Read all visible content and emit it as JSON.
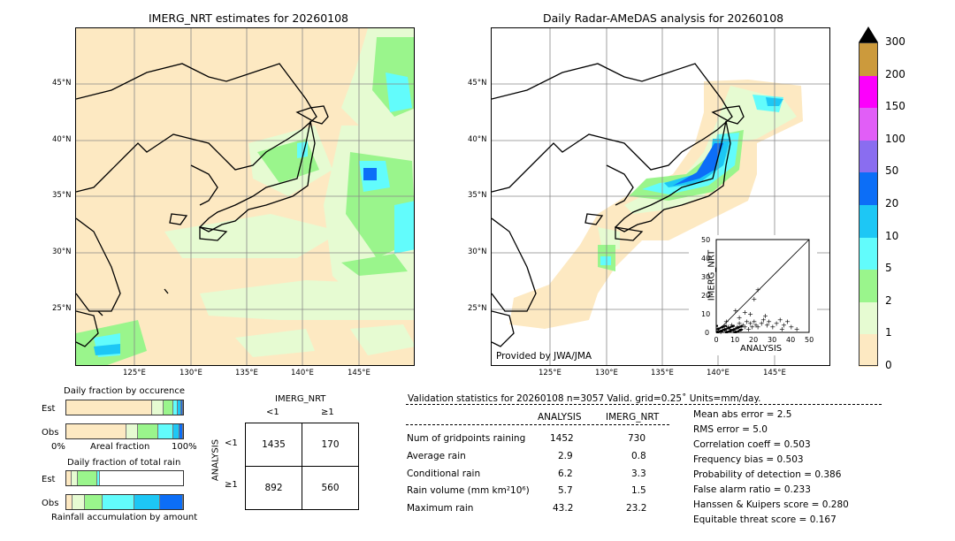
{
  "left_map": {
    "title": "IMERG_NRT estimates for 20260108",
    "lat_ticks": [
      "45°N",
      "40°N",
      "35°N",
      "30°N",
      "25°N"
    ],
    "lon_ticks": [
      "125°E",
      "130°E",
      "135°E",
      "140°E",
      "145°E"
    ]
  },
  "right_map": {
    "title": "Daily Radar-AMeDAS analysis for 20260108",
    "lat_ticks": [
      "45°N",
      "40°N",
      "35°N",
      "30°N",
      "25°N"
    ],
    "lon_ticks": [
      "125°E",
      "130°E",
      "135°E",
      "140°E",
      "145°E"
    ],
    "credit": "Provided by JWA/JMA"
  },
  "scatter": {
    "ylabel": "IMERG_NRT",
    "xlabel": "ANALYSIS",
    "ticks": [
      "0",
      "10",
      "20",
      "30",
      "40",
      "50"
    ]
  },
  "colorbar": {
    "labels": [
      "0",
      "1",
      "2",
      "5",
      "10",
      "20",
      "50",
      "100",
      "150",
      "200",
      "300"
    ],
    "colors": [
      "#fde9c2",
      "#e6fbd2",
      "#9af58c",
      "#62fcfc",
      "#1dc7f5",
      "#0c6ef7",
      "#8a6df0",
      "#e15ef7",
      "#fc00fc",
      "#cc9a3c",
      "#000000"
    ]
  },
  "fraction_occurrence": {
    "title": "Daily fraction by occurence",
    "row_est": "Est",
    "row_obs": "Obs",
    "axis_left": "0%",
    "axis_mid": "Areal fraction",
    "axis_right": "100%"
  },
  "fraction_total": {
    "title": "Daily fraction of total rain",
    "row_est": "Est",
    "row_obs": "Obs",
    "axis_label": "Rainfall accumulation by amount"
  },
  "contingency": {
    "col_title": "IMERG_NRT",
    "col_lt": "<1",
    "col_ge": "≥1",
    "row_title": "ANALYSIS",
    "row_lt": "<1",
    "row_ge": "≥1",
    "cells": [
      [
        "1435",
        "170"
      ],
      [
        "892",
        "560"
      ]
    ]
  },
  "validation": {
    "header": "Validation statistics for 20260108  n=3057 Valid. grid=0.25˚ Units=mm/day.",
    "col_analysis": "ANALYSIS",
    "col_imerg": "IMERG_NRT",
    "rows": [
      {
        "label": "Num of gridpoints raining",
        "analysis": "1452",
        "imerg": "730"
      },
      {
        "label": "Average rain",
        "analysis": "2.9",
        "imerg": "0.8"
      },
      {
        "label": "Conditional rain",
        "analysis": "6.2",
        "imerg": "3.3"
      },
      {
        "label": "Rain volume (mm km²10⁶)",
        "analysis": "5.7",
        "imerg": "1.5"
      },
      {
        "label": "Maximum rain",
        "analysis": "43.2",
        "imerg": "23.2"
      }
    ],
    "scores": [
      "Mean abs error =    2.5",
      "RMS error =    5.0",
      "Correlation coeff =  0.503",
      "Frequency bias =  0.503",
      "Probability of detection =  0.386",
      "False alarm ratio =  0.233",
      "Hanssen & Kuipers score =  0.280",
      "Equitable threat score =  0.167"
    ]
  },
  "chart_data": [
    {
      "type": "scatter",
      "xlabel": "ANALYSIS",
      "ylabel": "IMERG_NRT",
      "xlim": [
        0,
        50
      ],
      "ylim": [
        0,
        50
      ],
      "points": [
        [
          1,
          1
        ],
        [
          2,
          0.5
        ],
        [
          3,
          1.5
        ],
        [
          4,
          2
        ],
        [
          5,
          1
        ],
        [
          6,
          3
        ],
        [
          7,
          2
        ],
        [
          8,
          4
        ],
        [
          9,
          1
        ],
        [
          10,
          2
        ],
        [
          11,
          3
        ],
        [
          12,
          5
        ],
        [
          13,
          2
        ],
        [
          14,
          4
        ],
        [
          15,
          3
        ],
        [
          16,
          6
        ],
        [
          17,
          2
        ],
        [
          18,
          5
        ],
        [
          19,
          3
        ],
        [
          20,
          6
        ],
        [
          21,
          4
        ],
        [
          22,
          3
        ],
        [
          24,
          5
        ],
        [
          25,
          7
        ],
        [
          27,
          4
        ],
        [
          28,
          6
        ],
        [
          30,
          3
        ],
        [
          32,
          5
        ],
        [
          34,
          7
        ],
        [
          35,
          2
        ],
        [
          36,
          4
        ],
        [
          38,
          6
        ],
        [
          40,
          3
        ],
        [
          43,
          2
        ],
        [
          20,
          18
        ],
        [
          22,
          23
        ],
        [
          15,
          11
        ],
        [
          10,
          12
        ],
        [
          5,
          6
        ],
        [
          12,
          8
        ],
        [
          18,
          10
        ],
        [
          26,
          9
        ]
      ]
    },
    {
      "type": "bar",
      "title": "Daily fraction by occurence",
      "series": [
        {
          "name": "Est",
          "fractions": [
            0.76,
            0.1,
            0.08,
            0.03,
            0.02,
            0.01
          ]
        },
        {
          "name": "Obs",
          "fractions": [
            0.53,
            0.1,
            0.17,
            0.13,
            0.05,
            0.02
          ]
        }
      ]
    },
    {
      "type": "bar",
      "title": "Daily fraction of total rain",
      "series": [
        {
          "name": "Est",
          "fractions": [
            0.04,
            0.04,
            0.16,
            0.02,
            0.0,
            0.0
          ]
        },
        {
          "name": "Obs",
          "fractions": [
            0.05,
            0.1,
            0.14,
            0.27,
            0.22,
            0.19
          ]
        }
      ]
    }
  ]
}
